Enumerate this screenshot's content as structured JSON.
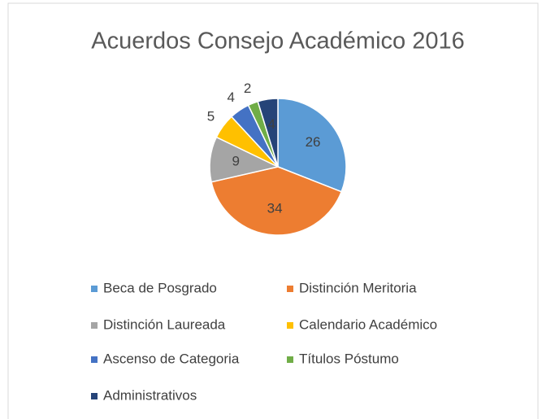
{
  "chart_data": {
    "type": "pie",
    "title": "Acuerdos Consejo Académico 2016",
    "categories": [
      "Beca de Posgrado",
      "Distinción Meritoria",
      "Distinción Laureada",
      "Calendario Académico",
      "Ascenso de Categoria",
      "Títulos Póstumo",
      "Administrativos"
    ],
    "values": [
      26,
      34,
      9,
      5,
      4,
      2,
      4
    ],
    "colors": [
      "#5b9bd5",
      "#ed7d31",
      "#a5a5a5",
      "#ffc000",
      "#4472c4",
      "#70ad47",
      "#264478"
    ],
    "legend": "bottom"
  }
}
